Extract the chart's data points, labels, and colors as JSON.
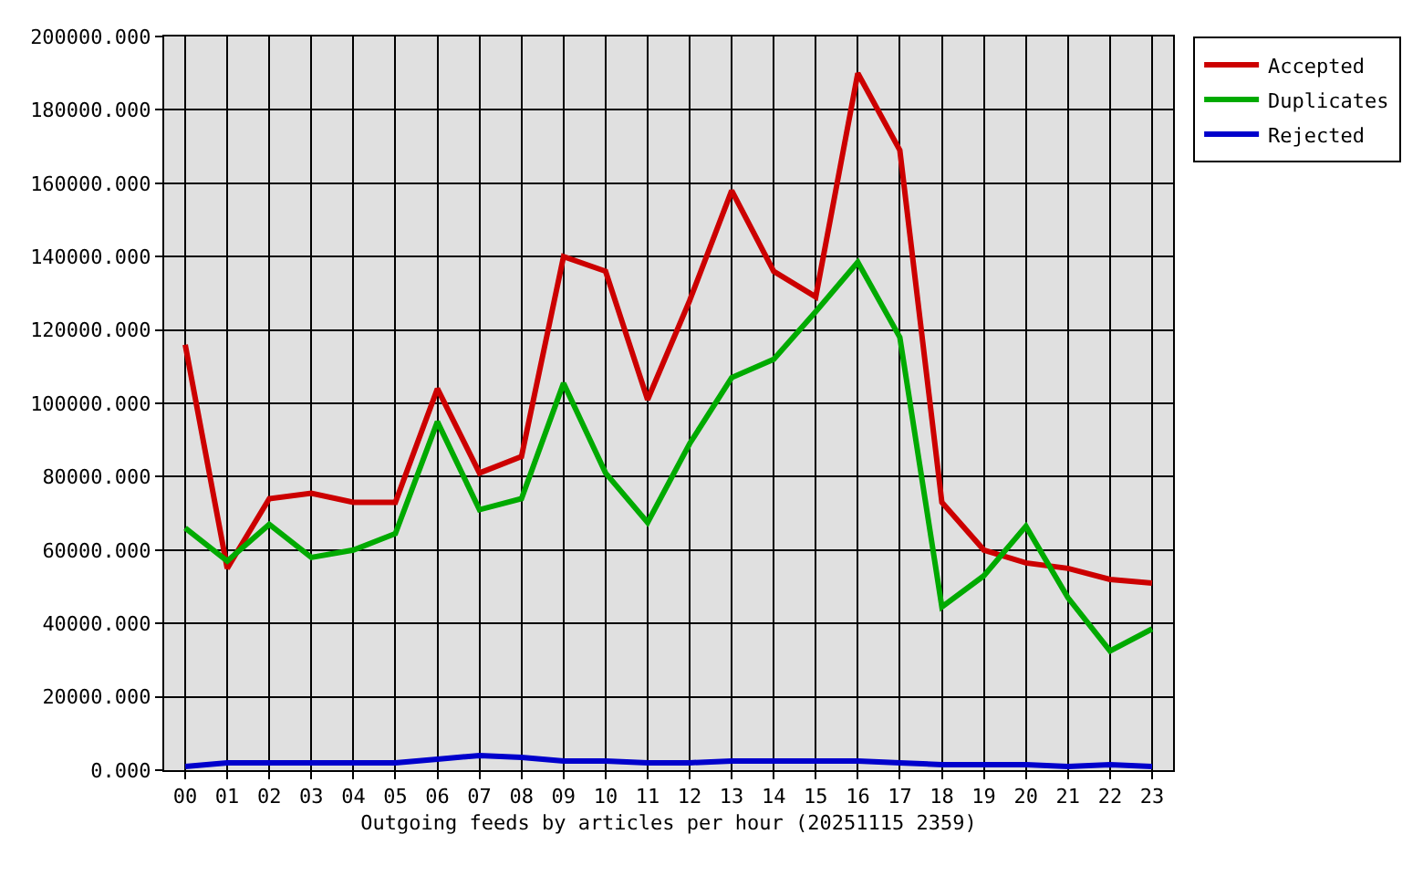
{
  "chart_data": {
    "type": "line",
    "xlabel": "Outgoing feeds by articles per hour (20251115 2359)",
    "categories": [
      "00",
      "01",
      "02",
      "03",
      "04",
      "05",
      "06",
      "07",
      "08",
      "09",
      "10",
      "11",
      "12",
      "13",
      "14",
      "15",
      "16",
      "17",
      "18",
      "19",
      "20",
      "21",
      "22",
      "23"
    ],
    "series": [
      {
        "name": "Accepted",
        "color": "#cc0000",
        "values": [
          116000,
          55000,
          74000,
          75500,
          73000,
          73000,
          104000,
          81000,
          85500,
          140000,
          136000,
          101000,
          128000,
          158000,
          136000,
          129000,
          190000,
          169000,
          73000,
          60000,
          56500,
          55000,
          52000,
          51000
        ]
      },
      {
        "name": "Duplicates",
        "color": "#00aa00",
        "values": [
          66000,
          57000,
          67000,
          58000,
          60000,
          64500,
          95000,
          71000,
          74000,
          105500,
          81000,
          67500,
          89000,
          107000,
          112000,
          125000,
          138500,
          118000,
          44500,
          53000,
          66500,
          47000,
          32500,
          38500
        ]
      },
      {
        "name": "Rejected",
        "color": "#0000cc",
        "values": [
          1000,
          2000,
          2000,
          2000,
          2000,
          2000,
          3000,
          4000,
          3500,
          2500,
          2500,
          2000,
          2000,
          2500,
          2500,
          2500,
          2500,
          2000,
          1500,
          1500,
          1500,
          1000,
          1500,
          1000
        ]
      }
    ],
    "ylim": [
      0,
      200000
    ],
    "yticks": [
      {
        "value": 0,
        "label": "0.000"
      },
      {
        "value": 20000,
        "label": "20000.000"
      },
      {
        "value": 40000,
        "label": "40000.000"
      },
      {
        "value": 60000,
        "label": "60000.000"
      },
      {
        "value": 80000,
        "label": "80000.000"
      },
      {
        "value": 100000,
        "label": "100000.000"
      },
      {
        "value": 120000,
        "label": "120000.000"
      },
      {
        "value": 140000,
        "label": "140000.000"
      },
      {
        "value": 160000,
        "label": "160000.000"
      },
      {
        "value": 180000,
        "label": "180000.000"
      },
      {
        "value": 200000,
        "label": "200000.000"
      }
    ],
    "grid": true,
    "legend": "top right",
    "marker": "none",
    "line_style": "solid"
  }
}
